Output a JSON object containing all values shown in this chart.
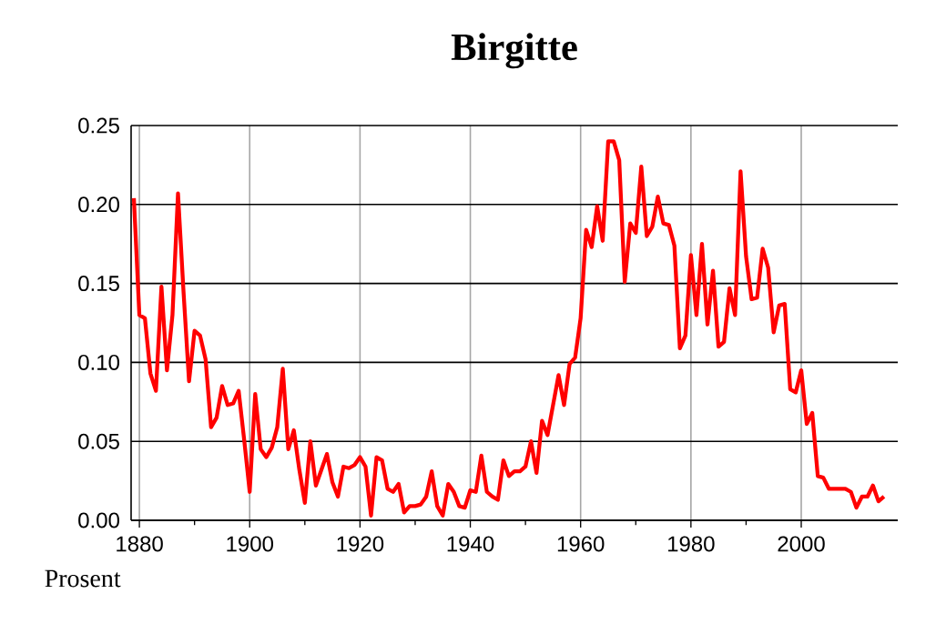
{
  "chart_data": {
    "type": "line",
    "title": "Birgitte",
    "ylabel": "Prosent",
    "x": [
      1879,
      1880,
      1881,
      1882,
      1883,
      1884,
      1885,
      1886,
      1887,
      1888,
      1889,
      1890,
      1891,
      1892,
      1893,
      1894,
      1895,
      1896,
      1897,
      1898,
      1899,
      1900,
      1901,
      1902,
      1903,
      1904,
      1905,
      1906,
      1907,
      1908,
      1909,
      1910,
      1911,
      1912,
      1913,
      1914,
      1915,
      1916,
      1917,
      1918,
      1919,
      1920,
      1921,
      1922,
      1923,
      1924,
      1925,
      1926,
      1927,
      1928,
      1929,
      1930,
      1931,
      1932,
      1933,
      1934,
      1935,
      1936,
      1937,
      1938,
      1939,
      1940,
      1941,
      1942,
      1943,
      1944,
      1945,
      1946,
      1947,
      1948,
      1949,
      1950,
      1951,
      1952,
      1953,
      1954,
      1955,
      1956,
      1957,
      1958,
      1959,
      1960,
      1961,
      1962,
      1963,
      1964,
      1965,
      1966,
      1967,
      1968,
      1969,
      1970,
      1971,
      1972,
      1973,
      1974,
      1975,
      1976,
      1977,
      1978,
      1979,
      1980,
      1981,
      1982,
      1983,
      1984,
      1985,
      1986,
      1987,
      1988,
      1989,
      1990,
      1991,
      1992,
      1993,
      1994,
      1995,
      1996,
      1997,
      1998,
      1999,
      2000,
      2001,
      2002,
      2003,
      2004,
      2005,
      2006,
      2007,
      2008,
      2009,
      2010,
      2011,
      2012,
      2013,
      2014,
      2015
    ],
    "series": [
      {
        "color": "#ff0000",
        "values": [
          0.204,
          0.13,
          0.128,
          0.093,
          0.082,
          0.148,
          0.095,
          0.13,
          0.207,
          0.145,
          0.088,
          0.12,
          0.117,
          0.102,
          0.059,
          0.065,
          0.085,
          0.073,
          0.074,
          0.082,
          0.051,
          0.018,
          0.08,
          0.045,
          0.04,
          0.046,
          0.059,
          0.096,
          0.045,
          0.057,
          0.032,
          0.011,
          0.05,
          0.022,
          0.032,
          0.042,
          0.024,
          0.015,
          0.034,
          0.033,
          0.035,
          0.04,
          0.034,
          0.003,
          0.04,
          0.038,
          0.02,
          0.018,
          0.023,
          0.005,
          0.009,
          0.009,
          0.01,
          0.015,
          0.031,
          0.009,
          0.003,
          0.023,
          0.018,
          0.009,
          0.008,
          0.019,
          0.018,
          0.041,
          0.018,
          0.015,
          0.013,
          0.038,
          0.028,
          0.031,
          0.031,
          0.034,
          0.05,
          0.03,
          0.063,
          0.054,
          0.073,
          0.092,
          0.073,
          0.099,
          0.103,
          0.128,
          0.184,
          0.173,
          0.199,
          0.177,
          0.24,
          0.24,
          0.228,
          0.151,
          0.188,
          0.182,
          0.224,
          0.18,
          0.186,
          0.205,
          0.188,
          0.187,
          0.174,
          0.109,
          0.117,
          0.168,
          0.13,
          0.175,
          0.124,
          0.158,
          0.11,
          0.113,
          0.147,
          0.13,
          0.221,
          0.167,
          0.14,
          0.141,
          0.172,
          0.16,
          0.119,
          0.136,
          0.137,
          0.083,
          0.081,
          0.095,
          0.061,
          0.068,
          0.028,
          0.027,
          0.02,
          0.02,
          0.02,
          0.02,
          0.018,
          0.008,
          0.015,
          0.015,
          0.022,
          0.012,
          0.015
        ]
      }
    ],
    "xlim": [
      1878.5,
      2017.5
    ],
    "ylim": [
      0,
      0.25
    ],
    "xticks": [
      1880,
      1900,
      1920,
      1940,
      1960,
      1980,
      2000
    ],
    "yticks": [
      {
        "value": 0,
        "label": "0.00"
      },
      {
        "value": 0.05,
        "label": "0.05"
      },
      {
        "value": 0.1,
        "label": "0.10"
      },
      {
        "value": 0.15,
        "label": "0.15"
      },
      {
        "value": 0.2,
        "label": "0.20"
      },
      {
        "value": 0.25,
        "label": "0.25"
      }
    ],
    "grid": true,
    "marker": "none",
    "line_style": "solid"
  }
}
